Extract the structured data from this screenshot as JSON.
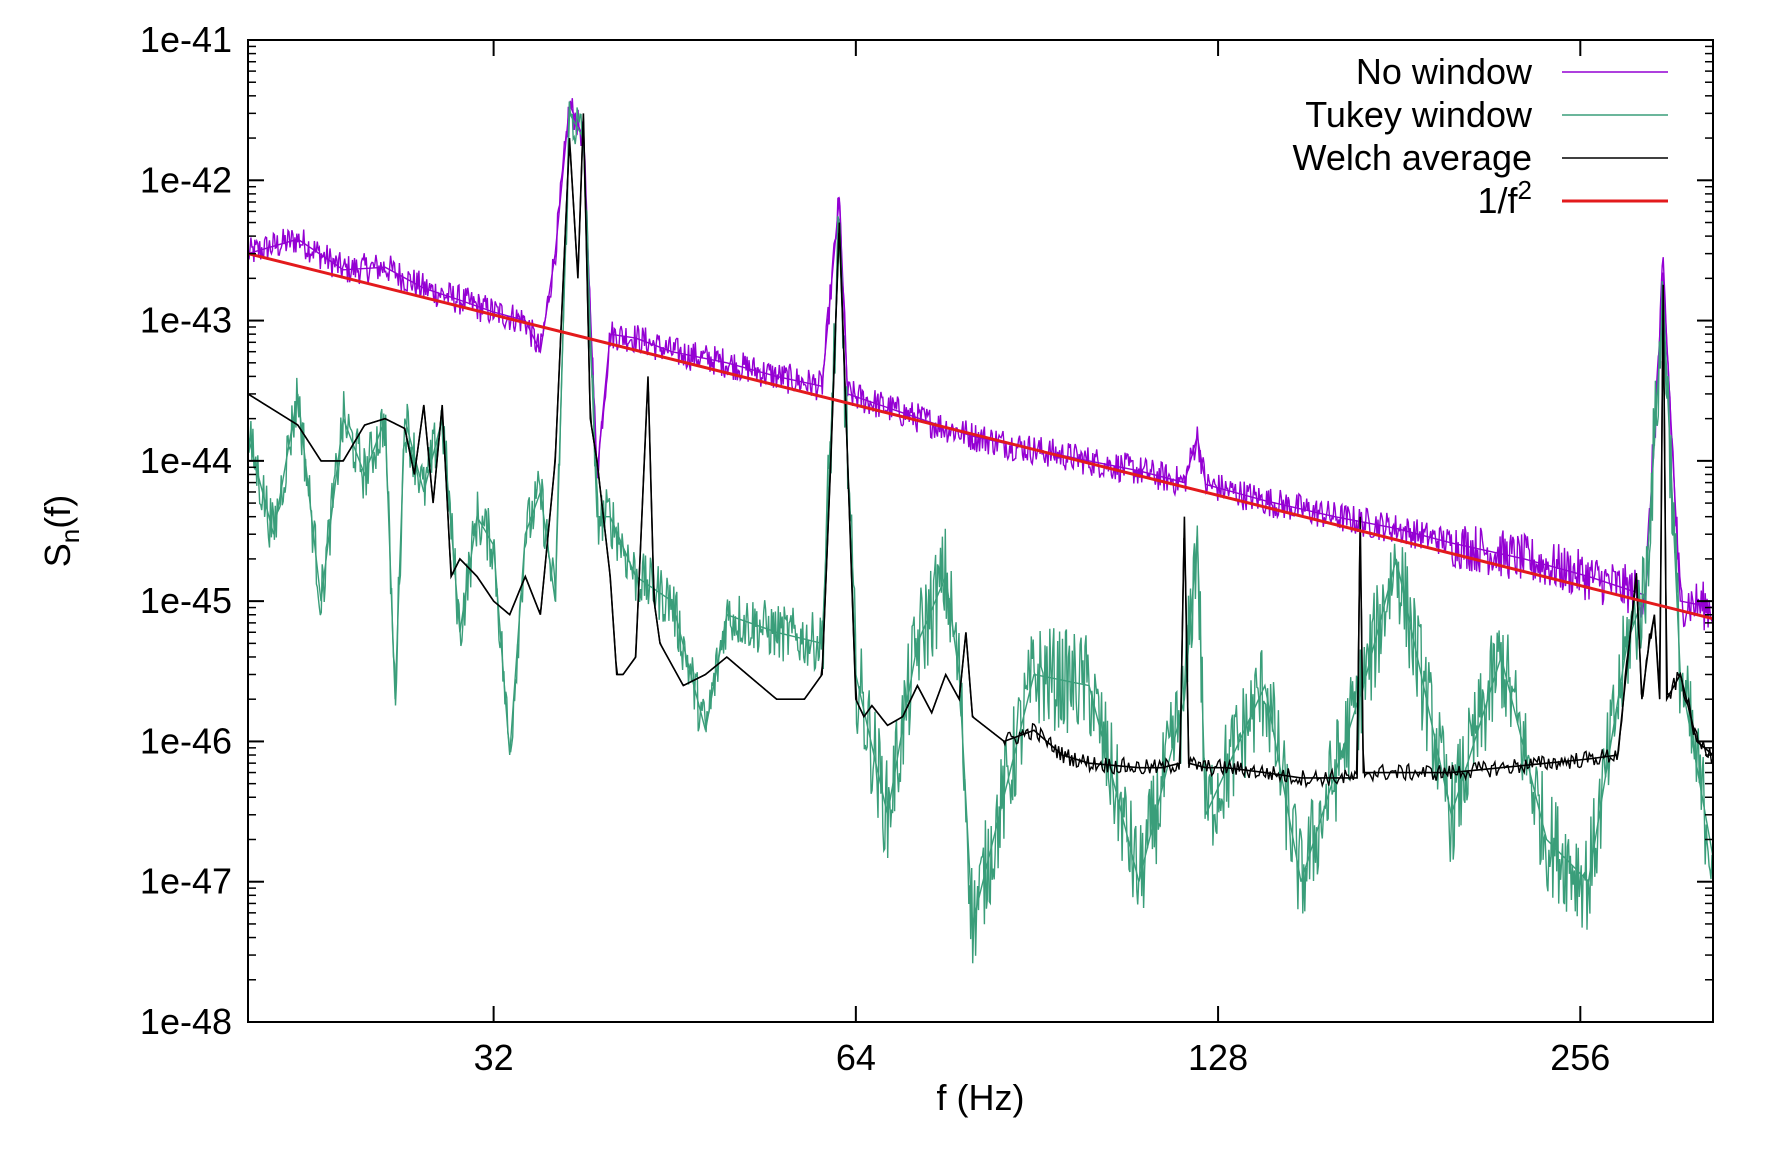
{
  "chart_data": {
    "type": "line",
    "title": "",
    "xlabel": "f (Hz)",
    "ylabel": {
      "base": "S",
      "sub": "n",
      "suffix": "(f)"
    },
    "xscale": "log2",
    "yscale": "log10",
    "xlim": [
      20,
      330
    ],
    "ylim": [
      1e-48,
      1e-41
    ],
    "xticks": [
      32,
      64,
      128,
      256
    ],
    "xtick_labels": [
      "32",
      "64",
      "128",
      "256"
    ],
    "yticks": [
      1e-41,
      1e-42,
      1e-43,
      1e-44,
      1e-45,
      1e-46,
      1e-47,
      1e-48
    ],
    "ytick_labels": [
      "1e-41",
      "1e-42",
      "1e-43",
      "1e-44",
      "1e-45",
      "1e-46",
      "1e-47",
      "1e-48"
    ],
    "grid": false,
    "legend_position": "top-right",
    "series": [
      {
        "name": "No window",
        "color": "#9400d3",
        "style": "noisy",
        "points": [
          [
            20,
            3e-43
          ],
          [
            22,
            3.8e-43
          ],
          [
            24,
            2.3e-43
          ],
          [
            26,
            2.4e-43
          ],
          [
            28,
            1.7e-43
          ],
          [
            30,
            1.4e-43
          ],
          [
            32,
            1.15e-43
          ],
          [
            34,
            1e-43
          ],
          [
            35,
            6e-44
          ],
          [
            36,
            3e-43
          ],
          [
            37,
            3.5e-42
          ],
          [
            38,
            2e-42
          ],
          [
            39,
            8e-45
          ],
          [
            40,
            8e-44
          ],
          [
            42,
            7.5e-44
          ],
          [
            45,
            6e-44
          ],
          [
            50,
            5e-44
          ],
          [
            55,
            4e-44
          ],
          [
            60,
            3.4e-44
          ],
          [
            62,
            7.5e-43
          ],
          [
            63,
            3e-44
          ],
          [
            70,
            2.2e-44
          ],
          [
            75,
            1.8e-44
          ],
          [
            80,
            1.5e-44
          ],
          [
            90,
            1.2e-44
          ],
          [
            100,
            1e-44
          ],
          [
            110,
            8.5e-45
          ],
          [
            120,
            7e-45
          ],
          [
            123,
            1.5e-44
          ],
          [
            125,
            6.8e-45
          ],
          [
            140,
            5.2e-45
          ],
          [
            160,
            4e-45
          ],
          [
            180,
            3.3e-45
          ],
          [
            200,
            2.6e-45
          ],
          [
            230,
            2e-45
          ],
          [
            260,
            1.5e-45
          ],
          [
            290,
            1.1e-45
          ],
          [
            300,
            2.2e-43
          ],
          [
            310,
            1e-45
          ],
          [
            330,
            9e-46
          ]
        ]
      },
      {
        "name": "Tukey window",
        "color": "#3a9e7a",
        "style": "noisy",
        "points": [
          [
            20,
            1.5e-44
          ],
          [
            21,
            3e-45
          ],
          [
            22,
            3e-44
          ],
          [
            23,
            1e-45
          ],
          [
            24,
            2e-44
          ],
          [
            25,
            8e-45
          ],
          [
            26,
            2e-44
          ],
          [
            26.5,
            2e-46
          ],
          [
            27,
            2e-44
          ],
          [
            28,
            6e-45
          ],
          [
            29,
            2e-44
          ],
          [
            30,
            6e-46
          ],
          [
            31,
            4e-45
          ],
          [
            32,
            2.5e-45
          ],
          [
            33,
            8e-47
          ],
          [
            34,
            3e-45
          ],
          [
            35,
            6e-45
          ],
          [
            36,
            1e-45
          ],
          [
            37,
            3e-42
          ],
          [
            38,
            2e-42
          ],
          [
            39,
            4e-45
          ],
          [
            40,
            4e-45
          ],
          [
            42,
            1.5e-45
          ],
          [
            45,
            1e-45
          ],
          [
            48,
            1.2e-46
          ],
          [
            50,
            8e-46
          ],
          [
            55,
            6e-46
          ],
          [
            60,
            5e-46
          ],
          [
            62,
            4e-43
          ],
          [
            64,
            3e-46
          ],
          [
            68,
            3e-47
          ],
          [
            72,
            5e-46
          ],
          [
            76,
            1.5e-45
          ],
          [
            78,
            3e-46
          ],
          [
            80,
            5e-48
          ],
          [
            90,
            3e-46
          ],
          [
            100,
            2.5e-46
          ],
          [
            110,
            1e-47
          ],
          [
            120,
            2e-46
          ],
          [
            123,
            3e-45
          ],
          [
            125,
            3e-47
          ],
          [
            140,
            2.5e-46
          ],
          [
            150,
            1e-47
          ],
          [
            170,
            3e-46
          ],
          [
            180,
            2e-45
          ],
          [
            200,
            3e-47
          ],
          [
            220,
            4e-46
          ],
          [
            240,
            2e-47
          ],
          [
            260,
            1e-47
          ],
          [
            280,
            5e-46
          ],
          [
            290,
            1.2e-45
          ],
          [
            300,
            1.5e-43
          ],
          [
            310,
            3e-46
          ],
          [
            330,
            1.5e-47
          ]
        ]
      },
      {
        "name": "Welch average",
        "color": "#000000",
        "style": "smooth",
        "points": [
          [
            20,
            3e-44
          ],
          [
            22,
            1.8e-44
          ],
          [
            23,
            1e-44
          ],
          [
            24,
            1e-44
          ],
          [
            25,
            1.8e-44
          ],
          [
            26,
            2e-44
          ],
          [
            27,
            1.7e-44
          ],
          [
            27.5,
            8e-45
          ],
          [
            28,
            2.5e-44
          ],
          [
            28.5,
            5e-45
          ],
          [
            29,
            2.5e-44
          ],
          [
            29.5,
            1.5e-45
          ],
          [
            30,
            2e-45
          ],
          [
            31,
            1.5e-45
          ],
          [
            32,
            1e-45
          ],
          [
            33,
            8e-46
          ],
          [
            34,
            1.5e-45
          ],
          [
            35,
            8e-46
          ],
          [
            36,
            1e-44
          ],
          [
            37,
            2e-42
          ],
          [
            37.6,
            2e-43
          ],
          [
            38,
            3e-42
          ],
          [
            38.5,
            2e-44
          ],
          [
            39,
            1e-44
          ],
          [
            40,
            1.5e-45
          ],
          [
            40.5,
            3e-46
          ],
          [
            41,
            3e-46
          ],
          [
            42,
            4e-46
          ],
          [
            43,
            4e-44
          ],
          [
            43.5,
            1e-45
          ],
          [
            44,
            5e-46
          ],
          [
            46,
            2.5e-46
          ],
          [
            48,
            3e-46
          ],
          [
            50,
            4e-46
          ],
          [
            52,
            3e-46
          ],
          [
            55,
            2e-46
          ],
          [
            58,
            2e-46
          ],
          [
            60,
            3e-46
          ],
          [
            61,
            1e-44
          ],
          [
            62,
            5e-43
          ],
          [
            63,
            1e-44
          ],
          [
            64,
            2e-46
          ],
          [
            65,
            1.5e-46
          ],
          [
            66,
            1.8e-46
          ],
          [
            68,
            1.3e-46
          ],
          [
            70,
            1.5e-46
          ],
          [
            72,
            2.5e-46
          ],
          [
            74,
            1.6e-46
          ],
          [
            76,
            3e-46
          ],
          [
            78,
            2e-46
          ],
          [
            79,
            6e-46
          ],
          [
            80,
            1.5e-46
          ],
          [
            85,
            1e-46
          ],
          [
            90,
            1.2e-46
          ],
          [
            95,
            8e-47
          ],
          [
            100,
            7e-47
          ],
          [
            110,
            6.5e-47
          ],
          [
            115,
            6.5e-47
          ],
          [
            119,
            7e-47
          ],
          [
            120,
            4e-45
          ],
          [
            121,
            7e-47
          ],
          [
            125,
            6.5e-47
          ],
          [
            130,
            6.5e-47
          ],
          [
            140,
            6e-47
          ],
          [
            150,
            5.5e-47
          ],
          [
            160,
            5.5e-47
          ],
          [
            167,
            5.5e-47
          ],
          [
            168,
            4e-45
          ],
          [
            169,
            6e-47
          ],
          [
            180,
            6e-47
          ],
          [
            190,
            6e-47
          ],
          [
            200,
            6e-47
          ],
          [
            220,
            6.5e-47
          ],
          [
            240,
            7e-47
          ],
          [
            260,
            7.5e-47
          ],
          [
            275,
            8e-47
          ],
          [
            285,
            1.5e-45
          ],
          [
            288,
            2e-46
          ],
          [
            292,
            5e-46
          ],
          [
            295,
            8e-46
          ],
          [
            298,
            2e-46
          ],
          [
            300,
            1.8e-43
          ],
          [
            302,
            2e-46
          ],
          [
            310,
            3e-46
          ],
          [
            320,
            1e-46
          ],
          [
            330,
            8e-47
          ]
        ]
      },
      {
        "name": "1/f²",
        "color": "#e31a1c",
        "style": "line",
        "points": [
          [
            20,
            3e-43
          ],
          [
            330,
            7.5e-46
          ]
        ]
      }
    ]
  },
  "legend": [
    {
      "label": "No window",
      "color": "#9400d3"
    },
    {
      "label": "Tukey window",
      "color": "#3a9e7a"
    },
    {
      "label": "Welch average",
      "color": "#000000"
    },
    {
      "label": "1/f",
      "sup": "2",
      "color": "#e31a1c"
    }
  ]
}
